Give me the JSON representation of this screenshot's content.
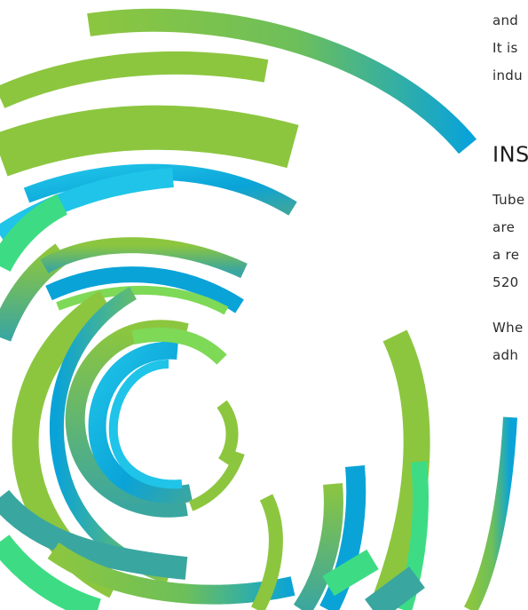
{
  "text": {
    "para1": [
      "and",
      "It is",
      "indu"
    ],
    "heading": "INS",
    "para2": [
      "Tube",
      "are",
      "a re",
      "520"
    ],
    "para3": [
      "Whe",
      "adh"
    ]
  },
  "colors": {
    "green": "#8cc63f",
    "green_light": "#7ed957",
    "teal": "#3aa6a0",
    "blue": "#0aa3d8",
    "cyan": "#1fc4e8",
    "mint": "#3ddc84"
  }
}
